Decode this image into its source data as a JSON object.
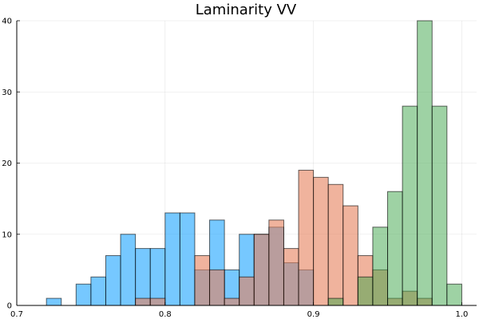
{
  "chart_data": {
    "type": "bar",
    "title": "Laminarity VV",
    "xlabel": "",
    "ylabel": "",
    "xlim": [
      0.7,
      1.01
    ],
    "ylim": [
      0,
      40
    ],
    "bin_width": 0.01,
    "grid": true,
    "legend": "none",
    "xticks": [
      {
        "value": 0.7,
        "label": "0.7"
      },
      {
        "value": 0.8,
        "label": "0.8"
      },
      {
        "value": 0.9,
        "label": "0.9"
      },
      {
        "value": 1.0,
        "label": "1.0"
      }
    ],
    "yticks": [
      {
        "value": 0,
        "label": "0"
      },
      {
        "value": 10,
        "label": "10"
      },
      {
        "value": 20,
        "label": "20"
      },
      {
        "value": 30,
        "label": "30"
      },
      {
        "value": 40,
        "label": "40"
      }
    ],
    "series": [
      {
        "color": "#1aa3ff",
        "opacity": 0.6,
        "bins": [
          {
            "x": 0.72,
            "y": 1
          },
          {
            "x": 0.74,
            "y": 3
          },
          {
            "x": 0.75,
            "y": 4
          },
          {
            "x": 0.76,
            "y": 7
          },
          {
            "x": 0.77,
            "y": 10
          },
          {
            "x": 0.78,
            "y": 8
          },
          {
            "x": 0.79,
            "y": 8
          },
          {
            "x": 0.8,
            "y": 13
          },
          {
            "x": 0.81,
            "y": 13
          },
          {
            "x": 0.82,
            "y": 5
          },
          {
            "x": 0.83,
            "y": 12
          },
          {
            "x": 0.84,
            "y": 5
          },
          {
            "x": 0.85,
            "y": 10
          },
          {
            "x": 0.86,
            "y": 10
          },
          {
            "x": 0.87,
            "y": 11
          },
          {
            "x": 0.88,
            "y": 6
          },
          {
            "x": 0.89,
            "y": 5
          }
        ]
      },
      {
        "color": "#e6805c",
        "opacity": 0.6,
        "bins": [
          {
            "x": 0.78,
            "y": 1
          },
          {
            "x": 0.79,
            "y": 1
          },
          {
            "x": 0.82,
            "y": 7
          },
          {
            "x": 0.83,
            "y": 5
          },
          {
            "x": 0.84,
            "y": 1
          },
          {
            "x": 0.85,
            "y": 4
          },
          {
            "x": 0.86,
            "y": 10
          },
          {
            "x": 0.87,
            "y": 12
          },
          {
            "x": 0.88,
            "y": 8
          },
          {
            "x": 0.89,
            "y": 19
          },
          {
            "x": 0.9,
            "y": 18
          },
          {
            "x": 0.91,
            "y": 17
          },
          {
            "x": 0.92,
            "y": 14
          },
          {
            "x": 0.93,
            "y": 7
          },
          {
            "x": 0.94,
            "y": 5
          },
          {
            "x": 0.95,
            "y": 1
          },
          {
            "x": 0.96,
            "y": 2
          },
          {
            "x": 0.97,
            "y": 1
          }
        ]
      },
      {
        "color": "#3da64a",
        "opacity": 0.5,
        "bins": [
          {
            "x": 0.91,
            "y": 1
          },
          {
            "x": 0.93,
            "y": 4
          },
          {
            "x": 0.94,
            "y": 11
          },
          {
            "x": 0.95,
            "y": 16
          },
          {
            "x": 0.96,
            "y": 28
          },
          {
            "x": 0.97,
            "y": 40
          },
          {
            "x": 0.98,
            "y": 28
          },
          {
            "x": 0.99,
            "y": 3
          }
        ]
      }
    ]
  }
}
